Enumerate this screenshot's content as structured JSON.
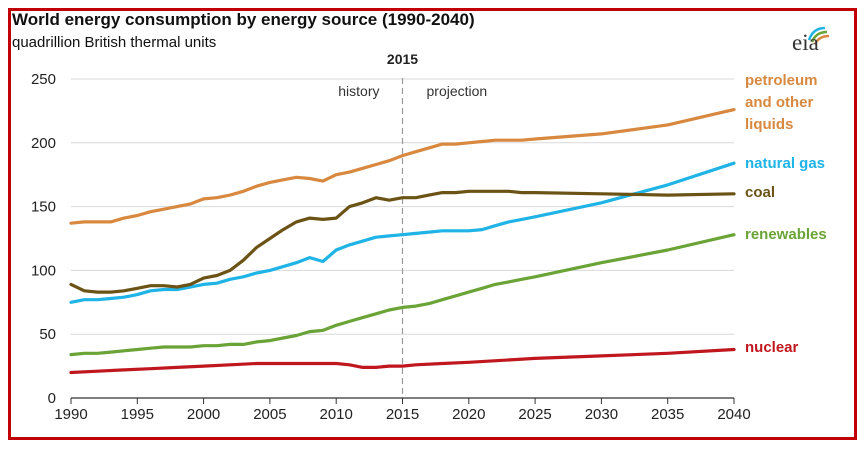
{
  "chart_data": {
    "type": "line",
    "title": "World energy consumption by energy source (1990-2040)",
    "subtitle": "quadrillion British thermal units",
    "xlim": [
      1990,
      2040
    ],
    "ylim": [
      0,
      250
    ],
    "x_ticks": [
      1990,
      1995,
      2000,
      2005,
      2010,
      2015,
      2020,
      2025,
      2030,
      2035,
      2040
    ],
    "y_ticks": [
      0,
      50,
      100,
      150,
      200,
      250
    ],
    "grid": "horizontal",
    "divider": {
      "x": 2015,
      "label": "2015",
      "left_label": "history",
      "right_label": "projection"
    },
    "series": [
      {
        "name": "petroleum and other liquids",
        "label_lines": [
          "petroleum",
          "and other",
          "liquids"
        ],
        "color": "#d8883f",
        "points": [
          [
            1990,
            137
          ],
          [
            1991,
            138
          ],
          [
            1992,
            138
          ],
          [
            1993,
            138
          ],
          [
            1994,
            141
          ],
          [
            1995,
            143
          ],
          [
            1996,
            146
          ],
          [
            1997,
            148
          ],
          [
            1998,
            150
          ],
          [
            1999,
            152
          ],
          [
            2000,
            156
          ],
          [
            2001,
            157
          ],
          [
            2002,
            159
          ],
          [
            2003,
            162
          ],
          [
            2004,
            166
          ],
          [
            2005,
            169
          ],
          [
            2006,
            171
          ],
          [
            2007,
            173
          ],
          [
            2008,
            172
          ],
          [
            2009,
            170
          ],
          [
            2010,
            175
          ],
          [
            2011,
            177
          ],
          [
            2012,
            180
          ],
          [
            2013,
            183
          ],
          [
            2014,
            186
          ],
          [
            2015,
            190
          ],
          [
            2016,
            193
          ],
          [
            2017,
            196
          ],
          [
            2018,
            199
          ],
          [
            2019,
            199
          ],
          [
            2020,
            200
          ],
          [
            2021,
            201
          ],
          [
            2022,
            202
          ],
          [
            2023,
            202
          ],
          [
            2024,
            202
          ],
          [
            2025,
            203
          ],
          [
            2030,
            207
          ],
          [
            2035,
            214
          ],
          [
            2040,
            226
          ]
        ]
      },
      {
        "name": "natural gas",
        "label_lines": [
          "natural gas"
        ],
        "color": "#1fb3e6",
        "points": [
          [
            1990,
            75
          ],
          [
            1991,
            77
          ],
          [
            1992,
            77
          ],
          [
            1993,
            78
          ],
          [
            1994,
            79
          ],
          [
            1995,
            81
          ],
          [
            1996,
            84
          ],
          [
            1997,
            85
          ],
          [
            1998,
            85
          ],
          [
            1999,
            87
          ],
          [
            2000,
            89
          ],
          [
            2001,
            90
          ],
          [
            2002,
            93
          ],
          [
            2003,
            95
          ],
          [
            2004,
            98
          ],
          [
            2005,
            100
          ],
          [
            2006,
            103
          ],
          [
            2007,
            106
          ],
          [
            2008,
            110
          ],
          [
            2009,
            107
          ],
          [
            2010,
            116
          ],
          [
            2011,
            120
          ],
          [
            2012,
            123
          ],
          [
            2013,
            126
          ],
          [
            2014,
            127
          ],
          [
            2015,
            128
          ],
          [
            2016,
            129
          ],
          [
            2017,
            130
          ],
          [
            2018,
            131
          ],
          [
            2019,
            131
          ],
          [
            2020,
            131
          ],
          [
            2021,
            132
          ],
          [
            2022,
            135
          ],
          [
            2023,
            138
          ],
          [
            2024,
            140
          ],
          [
            2025,
            142
          ],
          [
            2030,
            153
          ],
          [
            2035,
            167
          ],
          [
            2040,
            184
          ]
        ]
      },
      {
        "name": "coal",
        "label_lines": [
          "coal"
        ],
        "color": "#6b5316",
        "points": [
          [
            1990,
            89
          ],
          [
            1991,
            84
          ],
          [
            1992,
            83
          ],
          [
            1993,
            83
          ],
          [
            1994,
            84
          ],
          [
            1995,
            86
          ],
          [
            1996,
            88
          ],
          [
            1997,
            88
          ],
          [
            1998,
            87
          ],
          [
            1999,
            89
          ],
          [
            2000,
            94
          ],
          [
            2001,
            96
          ],
          [
            2002,
            100
          ],
          [
            2003,
            108
          ],
          [
            2004,
            118
          ],
          [
            2005,
            125
          ],
          [
            2006,
            132
          ],
          [
            2007,
            138
          ],
          [
            2008,
            141
          ],
          [
            2009,
            140
          ],
          [
            2010,
            141
          ],
          [
            2011,
            150
          ],
          [
            2012,
            153
          ],
          [
            2013,
            157
          ],
          [
            2014,
            155
          ],
          [
            2015,
            157
          ],
          [
            2016,
            157
          ],
          [
            2017,
            159
          ],
          [
            2018,
            161
          ],
          [
            2019,
            161
          ],
          [
            2020,
            162
          ],
          [
            2021,
            162
          ],
          [
            2022,
            162
          ],
          [
            2023,
            162
          ],
          [
            2024,
            161
          ],
          [
            2025,
            161
          ],
          [
            2030,
            160
          ],
          [
            2035,
            159
          ],
          [
            2040,
            160
          ]
        ]
      },
      {
        "name": "renewables",
        "label_lines": [
          "renewables"
        ],
        "color": "#6aa336",
        "points": [
          [
            1990,
            34
          ],
          [
            1991,
            35
          ],
          [
            1992,
            35
          ],
          [
            1993,
            36
          ],
          [
            1994,
            37
          ],
          [
            1995,
            38
          ],
          [
            1996,
            39
          ],
          [
            1997,
            40
          ],
          [
            1998,
            40
          ],
          [
            1999,
            40
          ],
          [
            2000,
            41
          ],
          [
            2001,
            41
          ],
          [
            2002,
            42
          ],
          [
            2003,
            42
          ],
          [
            2004,
            44
          ],
          [
            2005,
            45
          ],
          [
            2006,
            47
          ],
          [
            2007,
            49
          ],
          [
            2008,
            52
          ],
          [
            2009,
            53
          ],
          [
            2010,
            57
          ],
          [
            2011,
            60
          ],
          [
            2012,
            63
          ],
          [
            2013,
            66
          ],
          [
            2014,
            69
          ],
          [
            2015,
            71
          ],
          [
            2016,
            72
          ],
          [
            2017,
            74
          ],
          [
            2018,
            77
          ],
          [
            2019,
            80
          ],
          [
            2020,
            83
          ],
          [
            2021,
            86
          ],
          [
            2022,
            89
          ],
          [
            2023,
            91
          ],
          [
            2024,
            93
          ],
          [
            2025,
            95
          ],
          [
            2030,
            106
          ],
          [
            2035,
            116
          ],
          [
            2040,
            128
          ]
        ]
      },
      {
        "name": "nuclear",
        "label_lines": [
          "nuclear"
        ],
        "color": "#c0171f",
        "points": [
          [
            1990,
            20
          ],
          [
            1992,
            21
          ],
          [
            1994,
            22
          ],
          [
            1996,
            23
          ],
          [
            1998,
            24
          ],
          [
            2000,
            25
          ],
          [
            2002,
            26
          ],
          [
            2004,
            27
          ],
          [
            2006,
            27
          ],
          [
            2008,
            27
          ],
          [
            2010,
            27
          ],
          [
            2011,
            26
          ],
          [
            2012,
            24
          ],
          [
            2013,
            24
          ],
          [
            2014,
            25
          ],
          [
            2015,
            25
          ],
          [
            2016,
            26
          ],
          [
            2018,
            27
          ],
          [
            2020,
            28
          ],
          [
            2025,
            31
          ],
          [
            2030,
            33
          ],
          [
            2035,
            35
          ],
          [
            2040,
            38
          ]
        ]
      }
    ]
  },
  "logo": {
    "text": "eia"
  }
}
